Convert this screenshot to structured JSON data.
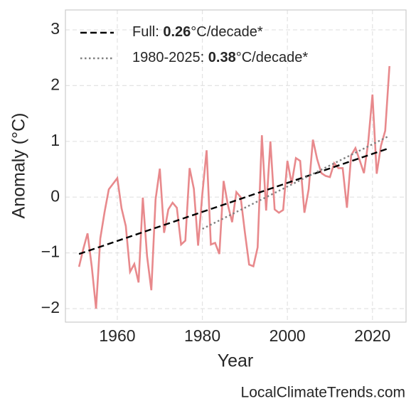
{
  "chart_data": {
    "type": "line",
    "xlabel": "Year",
    "ylabel": "Anomaly (°C)",
    "annotation": "LocalClimateTrends.com",
    "xlim": [
      1947.8,
      2027.9
    ],
    "ylim": [
      -2.242,
      3.357
    ],
    "xticks": [
      1960,
      1980,
      2000,
      2020
    ],
    "yticks": [
      {
        "value": -2,
        "label": "−2"
      },
      {
        "value": -1,
        "label": "−1"
      },
      0,
      1,
      2,
      3
    ],
    "grid": true,
    "legend": "upper left",
    "series": [
      {
        "color": "#e8898c",
        "style": "solid",
        "x": [
          1951,
          1952,
          1953,
          1954,
          1955,
          1956,
          1957,
          1958,
          1959,
          1960,
          1961,
          1962,
          1963,
          1964,
          1965,
          1966,
          1967,
          1968,
          1969,
          1970,
          1971,
          1972,
          1973,
          1974,
          1975,
          1976,
          1977,
          1978,
          1979,
          1980,
          1981,
          1982,
          1983,
          1984,
          1985,
          1986,
          1987,
          1988,
          1989,
          1990,
          1991,
          1992,
          1993,
          1994,
          1995,
          1996,
          1997,
          1998,
          1999,
          2000,
          2001,
          2002,
          2003,
          2004,
          2005,
          2006,
          2007,
          2008,
          2009,
          2010,
          2011,
          2012,
          2013,
          2014,
          2015,
          2016,
          2017,
          2018,
          2019,
          2020,
          2021,
          2022,
          2023,
          2024
        ],
        "values": [
          -1.25,
          -0.93,
          -0.65,
          -1.25,
          -2.0,
          -0.74,
          -0.27,
          0.14,
          0.24,
          0.34,
          -0.2,
          -0.52,
          -1.34,
          -1.2,
          -1.53,
          -0.01,
          -1.06,
          -1.67,
          -0.04,
          0.51,
          -0.64,
          -0.22,
          -0.1,
          -0.19,
          -0.85,
          -0.78,
          0.52,
          0.15,
          -0.87,
          0.06,
          0.84,
          -0.85,
          -0.82,
          -1.02,
          0.29,
          -0.14,
          -0.45,
          0.09,
          0.0,
          -0.63,
          -1.21,
          -1.24,
          -0.9,
          1.11,
          -0.24,
          1.0,
          -0.22,
          -0.28,
          -0.23,
          0.65,
          0.24,
          0.7,
          0.65,
          -0.28,
          0.14,
          1.03,
          0.68,
          0.43,
          0.38,
          0.36,
          0.61,
          0.52,
          0.52,
          -0.19,
          0.75,
          0.88,
          0.66,
          0.43,
          0.98,
          1.84,
          0.42,
          0.92,
          1.19,
          2.35
        ]
      },
      {
        "name": "Full: 0.26°C/decade*",
        "color": "#000000",
        "style": "dashed",
        "x": [
          1951,
          2024
        ],
        "values": [
          -1.02,
          0.88
        ]
      },
      {
        "name": "1980-2025: 0.38°C/decade*",
        "color": "#808080",
        "style": "dotted",
        "x": [
          1980,
          2024
        ],
        "values": [
          -0.57,
          1.1
        ]
      }
    ]
  }
}
